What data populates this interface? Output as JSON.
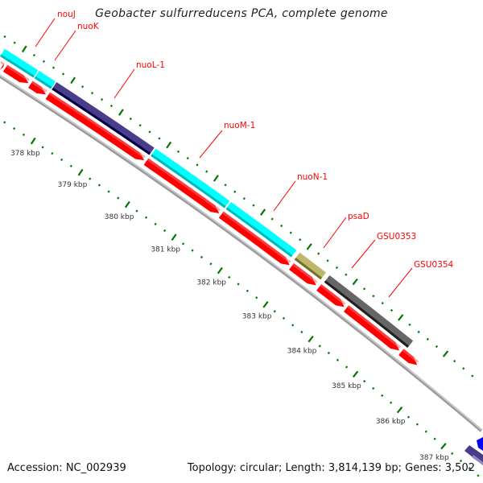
{
  "title": "Geobacter sulfurreducens PCA, complete genome",
  "footer": {
    "accession": "Accession: NC_002939",
    "summary": "Topology: circular; Length: 3,814,139 bp; Genes: 3,502"
  },
  "colors": {
    "forward_cds": "#00ffff",
    "reverse_cds": "#ff0000",
    "nuoL": "#483d8b",
    "psaD": "#bdb76b",
    "gsu": "#666666",
    "backbone": "#9a9a9a",
    "ticks": "#007700",
    "label": "#ff0000"
  },
  "scale": {
    "unit": "kbp",
    "major_labels": [
      "378 kbp",
      "379 kbp",
      "380 kbp",
      "381 kbp",
      "382 kbp",
      "383 kbp",
      "384 kbp",
      "385 kbp",
      "386 kbp",
      "387 kbp"
    ],
    "major_values": [
      378,
      379,
      380,
      381,
      382,
      383,
      384,
      385,
      386,
      387
    ],
    "minor_step_kbp": 0.2
  },
  "outer_genes": [
    {
      "name": "nouJ",
      "start": 376.6,
      "end": 377.4,
      "color": "#00ffff"
    },
    {
      "name": "nuoK",
      "start": 377.42,
      "end": 377.76,
      "color": "#00ffff"
    },
    {
      "name": "nuoL-1",
      "start": 377.78,
      "end": 379.82,
      "color": "#483d8b"
    },
    {
      "name": "nuoM-1",
      "start": 379.85,
      "end": 381.42,
      "color": "#00ffff"
    },
    {
      "name": "nuoN-1",
      "start": 381.45,
      "end": 382.86,
      "color": "#00ffff"
    },
    {
      "name": "psaD",
      "start": 382.93,
      "end": 383.5,
      "color": "#bdb76b"
    },
    {
      "name": "GSU0353",
      "start": 383.58,
      "end": 385.42,
      "color": "#666666"
    }
  ],
  "labels": [
    "nouJ",
    "nuoK",
    "nuoL-1",
    "nuoM-1",
    "nuoN-1",
    "psaD",
    "GSU0353",
    "GSU0354"
  ],
  "inner_genes": [
    {
      "start": 376.2,
      "end": 376.86
    },
    {
      "start": 376.9,
      "end": 377.38
    },
    {
      "start": 377.42,
      "end": 377.74
    },
    {
      "start": 377.78,
      "end": 379.8
    },
    {
      "start": 379.84,
      "end": 381.4
    },
    {
      "start": 381.44,
      "end": 382.92
    },
    {
      "start": 382.96,
      "end": 383.5
    },
    {
      "start": 383.56,
      "end": 384.12
    },
    {
      "start": 384.16,
      "end": 385.34
    },
    {
      "start": 385.38,
      "end": 385.74
    }
  ]
}
